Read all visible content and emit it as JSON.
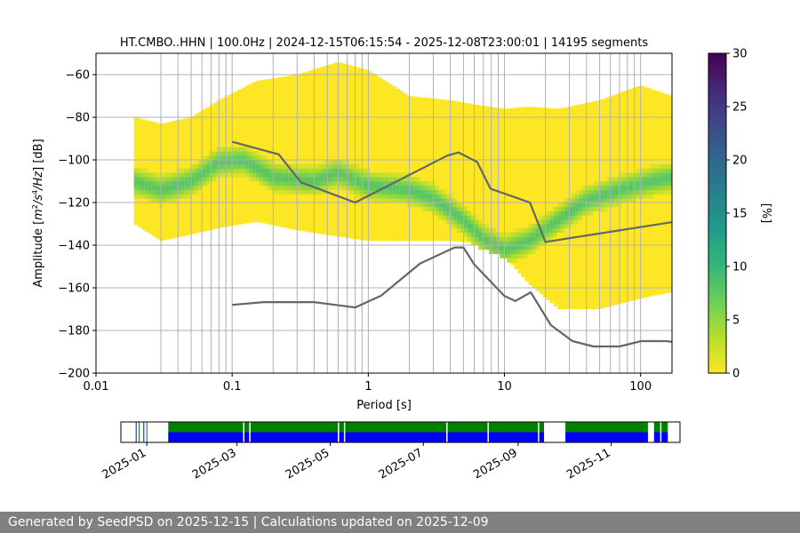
{
  "chart_data": {
    "type": "heatmap",
    "title": "HT.CMBO..HHN | 100.0Hz | 2024-12-15T06:15:54 - 2025-12-08T23:00:01 | 14195 segments",
    "xlabel": "Period [s]",
    "ylabel_parts": [
      "Amplitude [",
      "m",
      "2",
      "/s",
      "4",
      "/Hz",
      "] [dB]"
    ],
    "x_scale": "log",
    "xlim": [
      0.01,
      170
    ],
    "ylim": [
      -200,
      -50
    ],
    "x_ticks": [
      {
        "value": 0.01,
        "label": "0.01"
      },
      {
        "value": 0.1,
        "label": "0.1"
      },
      {
        "value": 1,
        "label": "1"
      },
      {
        "value": 10,
        "label": "10"
      },
      {
        "value": 100,
        "label": "100"
      }
    ],
    "y_ticks": [
      {
        "value": -60,
        "label": "−60"
      },
      {
        "value": -80,
        "label": "−80"
      },
      {
        "value": -100,
        "label": "−100"
      },
      {
        "value": -120,
        "label": "−120"
      },
      {
        "value": -140,
        "label": "−140"
      },
      {
        "value": -160,
        "label": "−160"
      },
      {
        "value": -180,
        "label": "−180"
      },
      {
        "value": -200,
        "label": "−200"
      }
    ],
    "period_gridlines": [
      0.03,
      0.04,
      0.05,
      0.06,
      0.07,
      0.08,
      0.09,
      0.1,
      0.2,
      0.3,
      0.4,
      0.5,
      0.6,
      0.7,
      0.8,
      0.9,
      1,
      2,
      3,
      4,
      5,
      6,
      7,
      8,
      9,
      10,
      20,
      30,
      40,
      50,
      60,
      70,
      80,
      90,
      100
    ],
    "density_envelope": {
      "period": [
        0.019,
        0.03,
        0.05,
        0.08,
        0.15,
        0.3,
        0.6,
        1,
        2,
        4,
        6,
        10,
        15,
        25,
        50,
        100,
        170
      ],
      "upper_db": [
        -80,
        -83,
        -80,
        -72,
        -63,
        -60,
        -54,
        -58,
        -70,
        -72,
        -74,
        -76,
        -75,
        -76,
        -72,
        -65,
        -70
      ],
      "lower_db": [
        -130,
        -138,
        -135,
        -132,
        -129,
        -133,
        -136,
        -138,
        -138,
        -138,
        -139,
        -145,
        -158,
        -170,
        -170,
        -165,
        -162
      ]
    },
    "mode_curve": {
      "period": [
        0.019,
        0.03,
        0.05,
        0.08,
        0.12,
        0.2,
        0.4,
        0.6,
        1,
        2,
        3,
        5,
        7,
        10,
        15,
        25,
        40,
        70,
        120,
        170
      ],
      "db": [
        -110,
        -114,
        -110,
        -101,
        -100,
        -108,
        -110,
        -106,
        -112,
        -114,
        -118,
        -128,
        -137,
        -142,
        -138,
        -128,
        -119,
        -114,
        -110,
        -108
      ]
    },
    "nhnm": {
      "name": "New High Noise Model",
      "period": [
        0.1,
        0.22,
        0.32,
        0.8,
        3.8,
        4.6,
        6.3,
        7.9,
        15.4,
        20,
        354.8
      ],
      "db": [
        -91.5,
        -97.4,
        -110.5,
        -120,
        -98,
        -96.5,
        -101,
        -113.5,
        -120,
        -138.5,
        -126
      ]
    },
    "nlnm": {
      "name": "New Low Noise Model",
      "period": [
        0.1,
        0.17,
        0.4,
        0.8,
        1.24,
        2.4,
        4.3,
        5,
        6,
        10,
        12,
        15.6,
        21.9,
        31.6,
        45,
        70,
        101,
        154,
        328
      ],
      "db": [
        -168,
        -166.7,
        -166.7,
        -169.2,
        -163.7,
        -148.6,
        -141.1,
        -141.1,
        -149,
        -163.8,
        -166.2,
        -162.1,
        -177.5,
        -185,
        -187.5,
        -187.5,
        -185,
        -185,
        -187.5
      ]
    },
    "colorbar": {
      "label": "[%]",
      "range": [
        0,
        30
      ],
      "ticks": [
        {
          "value": 0,
          "label": "0"
        },
        {
          "value": 5,
          "label": "5"
        },
        {
          "value": 10,
          "label": "10"
        },
        {
          "value": 15,
          "label": "15"
        },
        {
          "value": 20,
          "label": "20"
        },
        {
          "value": 25,
          "label": "25"
        },
        {
          "value": 30,
          "label": "30"
        }
      ],
      "colors": [
        "#fde725",
        "#b5de2b",
        "#6ece58",
        "#35b779",
        "#1f9e89",
        "#26828e",
        "#31688e",
        "#3e4989",
        "#482878",
        "#440154"
      ]
    },
    "availability": {
      "type": "timeline",
      "start": "2024-12-15",
      "end": "2025-12-16",
      "tick_labels": [
        "2025-01",
        "2025-03",
        "2025-05",
        "2025-07",
        "2025-09",
        "2025-11"
      ],
      "tick_dates": [
        "2025-01-01",
        "2025-03-01",
        "2025-05-01",
        "2025-07-01",
        "2025-09-01",
        "2025-11-01"
      ],
      "data_color": "#0000ff",
      "processed_color": "#008000",
      "spans": [
        [
          "2025-01-15",
          "2025-09-18"
        ],
        [
          "2025-10-02",
          "2025-11-25"
        ],
        [
          "2025-11-29",
          "2025-12-08"
        ]
      ],
      "gaps": [
        "2025-03-05",
        "2025-03-09",
        "2025-05-06",
        "2025-05-10",
        "2025-07-16",
        "2025-08-12",
        "2025-09-14",
        "2025-11-27",
        "2025-12-03"
      ],
      "early_ticks": [
        "2024-12-25",
        "2024-12-27",
        "2024-12-30",
        "2025-01-01"
      ]
    }
  },
  "footer": {
    "text": "Generated by SeedPSD on 2025-12-15 | Calculations updated on 2025-12-09"
  }
}
